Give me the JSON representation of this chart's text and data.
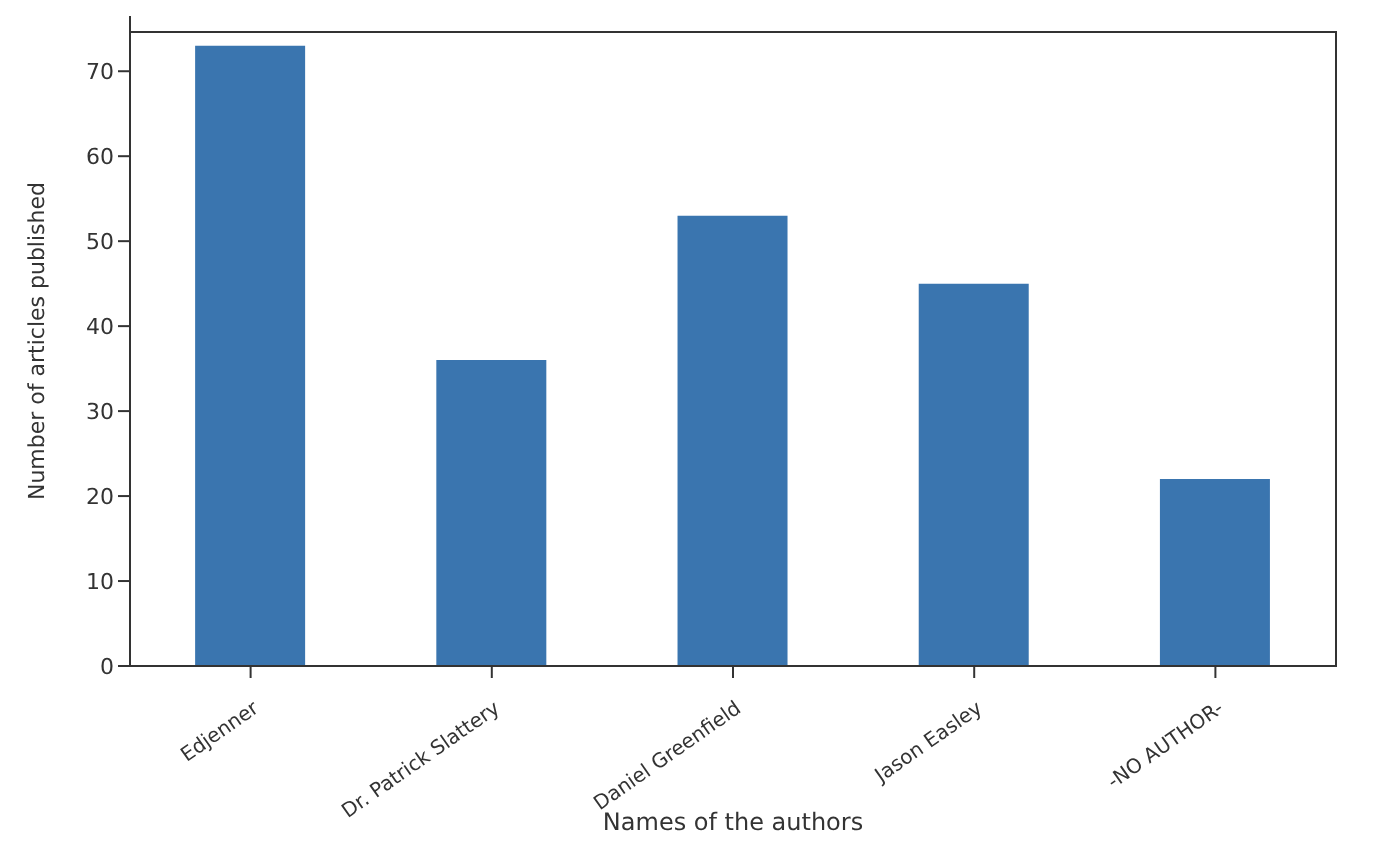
{
  "chart_data": {
    "type": "bar",
    "xlabel": "Names of the authors",
    "ylabel": "Number of articles published",
    "categories": [
      "Edjenner",
      "Dr. Patrick Slattery",
      "Daniel Greenfield",
      "Jason Easley",
      "-NO AUTHOR-"
    ],
    "values": [
      73,
      36,
      53,
      45,
      22
    ],
    "color": "#3a75af",
    "ylim": [
      0,
      76.5
    ],
    "yticks": [
      0,
      10,
      20,
      30,
      40,
      50,
      60,
      70
    ],
    "grid": false,
    "legend": false
  }
}
